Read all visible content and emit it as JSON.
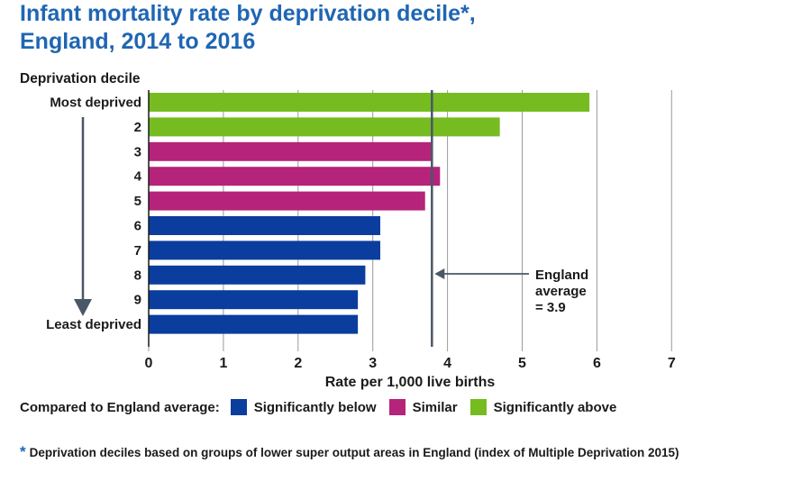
{
  "title_line1": "Infant mortality rate by deprivation decile*,",
  "title_line2": "England, 2014 to 2016",
  "legend": {
    "lead": "Compared to England average:",
    "items": [
      {
        "label": "Significantly below",
        "color": "#0a3d9e"
      },
      {
        "label": "Similar",
        "color": "#b5237a"
      },
      {
        "label": "Significantly above",
        "color": "#76bc21"
      }
    ]
  },
  "footnote": {
    "star": "*",
    "text": "Deprivation deciles based on groups of lower super output areas in England (index of Multiple Deprivation 2015)"
  },
  "chart_data": {
    "type": "bar",
    "orientation": "horizontal",
    "ylabel": "Deprivation decile",
    "xlabel": "Rate per 1,000 live births",
    "categories": [
      "Most deprived",
      "2",
      "3",
      "4",
      "5",
      "6",
      "7",
      "8",
      "9",
      "Least deprived"
    ],
    "values": [
      5.9,
      4.7,
      3.8,
      3.9,
      3.7,
      3.1,
      3.1,
      2.9,
      2.8,
      2.8
    ],
    "classification": [
      "above",
      "above",
      "similar",
      "similar",
      "similar",
      "below",
      "below",
      "below",
      "below",
      "below"
    ],
    "class_colors": {
      "below": "#0a3d9e",
      "similar": "#b5237a",
      "above": "#76bc21"
    },
    "xlim": [
      0,
      7
    ],
    "xticks": [
      0,
      1,
      2,
      3,
      4,
      5,
      6,
      7
    ],
    "grid": true,
    "reference_line": {
      "value": 3.9,
      "label_lines": [
        "England",
        "average",
        "= 3.9"
      ]
    }
  }
}
